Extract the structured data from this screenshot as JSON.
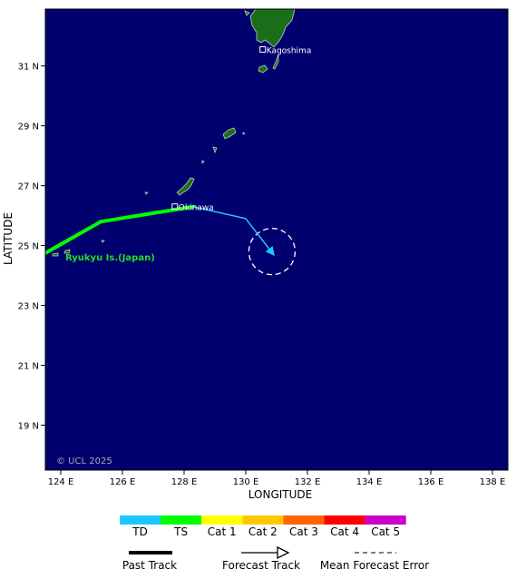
{
  "map": {
    "background_color": "#00006e",
    "land_color": "#1a6e1a",
    "land_outline_color": "#c8c8c8",
    "lon_range": [
      123.5,
      138.5
    ],
    "lat_range": [
      17.5,
      32.9
    ],
    "lon_ticks": [
      124,
      126,
      128,
      130,
      132,
      134,
      136,
      138
    ],
    "lat_ticks": [
      19,
      21,
      23,
      25,
      27,
      29,
      31
    ],
    "lon_tick_labels": [
      "124 E",
      "126 E",
      "128 E",
      "130 E",
      "132 E",
      "134 E",
      "136 E",
      "138 E"
    ],
    "lat_tick_labels": [
      "19 N",
      "21 N",
      "23 N",
      "25 N",
      "27 N",
      "29 N",
      "31 N"
    ],
    "xlabel": "LONGITUDE",
    "ylabel": "LATITUDE",
    "copyright": "© UCL 2025",
    "places": [
      {
        "name": "Kagoshima",
        "lon": 130.55,
        "lat": 31.55
      },
      {
        "name": "Okinawa",
        "lon": 127.7,
        "lat": 26.3
      }
    ],
    "region_label": {
      "text": "Ryukyu Is.(Japan)",
      "lon": 125.6,
      "lat": 24.5,
      "color": "#22dd22"
    }
  },
  "track": {
    "past": [
      {
        "lon": 123.5,
        "lat": 24.75,
        "category": "TS"
      },
      {
        "lon": 125.3,
        "lat": 25.8,
        "category": "TS"
      },
      {
        "lon": 128.3,
        "lat": 26.3,
        "category": "TS"
      }
    ],
    "forecast": [
      {
        "lon": 128.3,
        "lat": 26.3,
        "category": "TD"
      },
      {
        "lon": 130.0,
        "lat": 25.9,
        "category": "TD"
      },
      {
        "lon": 130.9,
        "lat": 24.7,
        "category": "TD"
      }
    ],
    "error_circle": {
      "lon": 130.85,
      "lat": 24.8,
      "radius_deg": 0.75
    }
  },
  "legend": {
    "categories": [
      {
        "label": "TD",
        "color": "#1ec8ff"
      },
      {
        "label": "TS",
        "color": "#00ff00"
      },
      {
        "label": "Cat 1",
        "color": "#ffff00"
      },
      {
        "label": "Cat 2",
        "color": "#ffc800"
      },
      {
        "label": "Cat 3",
        "color": "#ff6400"
      },
      {
        "label": "Cat 4",
        "color": "#ff0000"
      },
      {
        "label": "Cat 5",
        "color": "#c800c8"
      }
    ],
    "past_track_label": "Past Track",
    "forecast_track_label": "Forecast Track",
    "error_label": "Mean Forecast Error"
  }
}
